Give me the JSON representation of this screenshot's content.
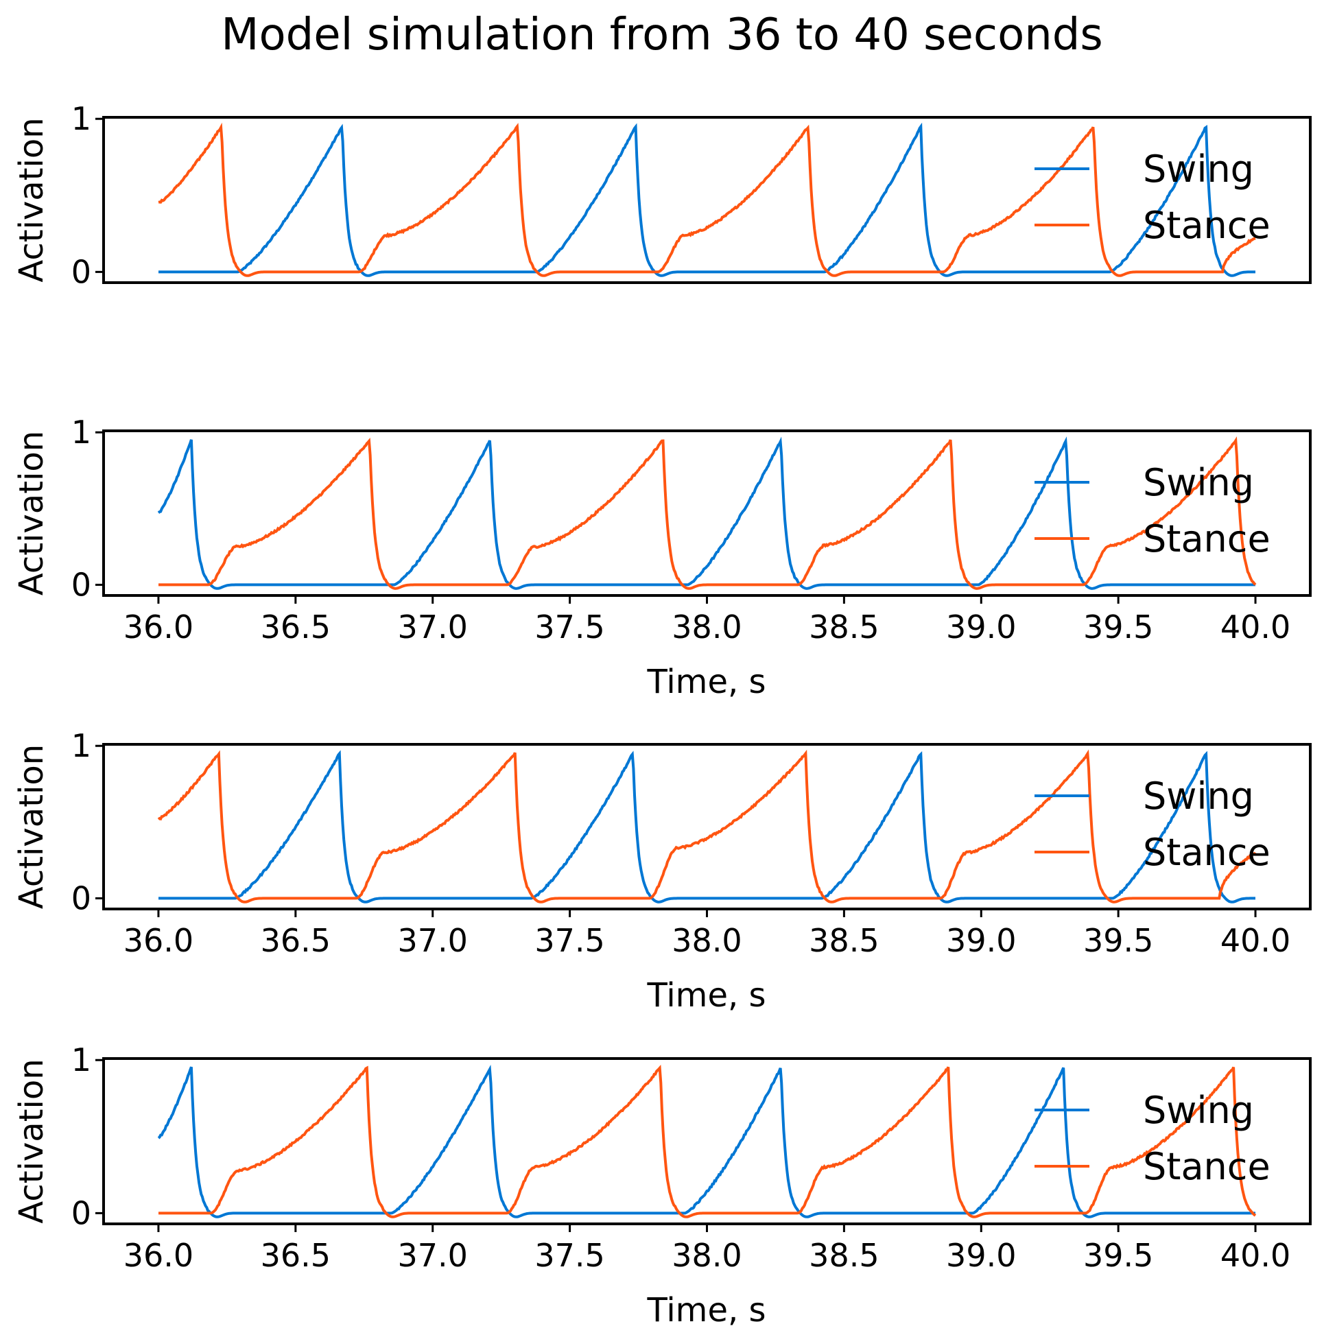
{
  "figure": {
    "title": "Model simulation from 36 to 40 seconds"
  },
  "chart_data": [
    {
      "type": "line",
      "ylabel": "Activation",
      "xlabel": "",
      "show_x_ticks": false,
      "xlim": [
        35.8,
        40.2
      ],
      "ylim": [
        -0.07,
        1.01
      ],
      "yticks": [
        "0",
        "1"
      ],
      "xticks": [],
      "legend": "top-right",
      "series": [
        {
          "name": "Swing",
          "color": "#0077d4",
          "peaks": [
            [
              36.29,
              36.67
            ],
            [
              37.38,
              37.74
            ],
            [
              38.43,
              38.78
            ],
            [
              39.47,
              39.82
            ]
          ]
        },
        {
          "name": "Stance",
          "color": "#ff5511",
          "start": [
            36.0,
            36.23,
            0.45
          ],
          "peaks": [
            [
              36.73,
              37.31,
              0.24
            ],
            [
              37.82,
              38.37,
              0.24
            ],
            [
              38.86,
              39.41,
              0.24
            ]
          ],
          "tail": [
            39.88,
            0.22
          ]
        }
      ]
    },
    {
      "type": "line",
      "ylabel": "Activation",
      "xlabel": "Time, s",
      "show_x_ticks": true,
      "xlim": [
        35.8,
        40.2
      ],
      "ylim": [
        -0.07,
        1.01
      ],
      "yticks": [
        "0",
        "1"
      ],
      "xticks": [
        "36.0",
        "36.5",
        "37.0",
        "37.5",
        "38.0",
        "38.5",
        "39.0",
        "39.5",
        "40.0"
      ],
      "legend": "top-right",
      "series": [
        {
          "name": "Swing",
          "color": "#0077d4",
          "start": [
            36.0,
            36.12,
            0.47
          ],
          "peaks": [
            [
              36.86,
              37.21
            ],
            [
              37.93,
              38.27
            ],
            [
              38.99,
              39.31
            ]
          ],
          "tail": [
            40.0,
            0.0
          ]
        },
        {
          "name": "Stance",
          "color": "#ff5511",
          "peaks": [
            [
              36.18,
              36.77,
              0.25
            ],
            [
              37.27,
              37.84,
              0.25
            ],
            [
              38.33,
              38.89,
              0.26
            ],
            [
              39.37,
              39.93,
              0.26
            ]
          ]
        }
      ]
    },
    {
      "type": "line",
      "ylabel": "Activation",
      "xlabel": "Time, s",
      "show_x_ticks": true,
      "xlim": [
        35.8,
        40.2
      ],
      "ylim": [
        -0.07,
        1.01
      ],
      "yticks": [
        "0",
        "1"
      ],
      "xticks": [
        "36.0",
        "36.5",
        "37.0",
        "37.5",
        "38.0",
        "38.5",
        "39.0",
        "39.5",
        "40.0"
      ],
      "legend": "top-right",
      "series": [
        {
          "name": "Swing",
          "color": "#0077d4",
          "peaks": [
            [
              36.28,
              36.66
            ],
            [
              37.36,
              37.73
            ],
            [
              38.42,
              38.78
            ],
            [
              39.48,
              39.82
            ]
          ]
        },
        {
          "name": "Stance",
          "color": "#ff5511",
          "start": [
            36.0,
            36.22,
            0.52
          ],
          "peaks": [
            [
              36.72,
              37.3,
              0.3
            ],
            [
              37.79,
              38.36,
              0.33
            ],
            [
              38.85,
              39.39,
              0.3
            ]
          ],
          "tail": [
            39.87,
            0.3
          ]
        }
      ]
    },
    {
      "type": "line",
      "ylabel": "Activation",
      "xlabel": "Time, s",
      "show_x_ticks": true,
      "xlim": [
        35.8,
        40.2
      ],
      "ylim": [
        -0.07,
        1.01
      ],
      "yticks": [
        "0",
        "1"
      ],
      "xticks": [
        "36.0",
        "36.5",
        "37.0",
        "37.5",
        "38.0",
        "38.5",
        "39.0",
        "39.5",
        "40.0"
      ],
      "legend": "top-right",
      "series": [
        {
          "name": "Swing",
          "color": "#0077d4",
          "start": [
            36.0,
            36.12,
            0.49
          ],
          "peaks": [
            [
              36.85,
              37.21
            ],
            [
              37.92,
              38.27
            ],
            [
              38.97,
              39.3
            ]
          ],
          "tail": [
            40.0,
            0.0
          ]
        },
        {
          "name": "Stance",
          "color": "#ff5511",
          "peaks": [
            [
              36.19,
              36.76,
              0.28
            ],
            [
              37.27,
              37.83,
              0.3
            ],
            [
              38.33,
              38.88,
              0.3
            ],
            [
              39.38,
              39.92,
              0.3
            ]
          ]
        }
      ]
    }
  ]
}
